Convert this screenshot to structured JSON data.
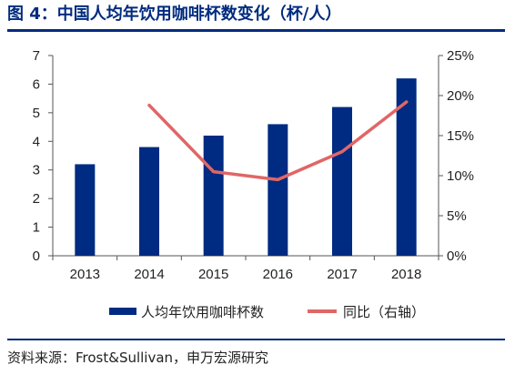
{
  "title": "图 4：中国人均年饮用咖啡杯数变化（杯/人）",
  "source": "资料来源：Frost&Sullivan，申万宏源研究",
  "colors": {
    "accent": "#002B7F",
    "bar": "#002B82",
    "line": "#E06666",
    "axis": "#555555"
  },
  "chart_data": {
    "type": "bar",
    "title": "图 4：中国人均年饮用咖啡杯数变化（杯/人）",
    "categories": [
      "2013",
      "2014",
      "2015",
      "2016",
      "2017",
      "2018"
    ],
    "series": [
      {
        "name": "人均年饮用咖啡杯数",
        "type": "bar",
        "axis": "left",
        "values": [
          3.2,
          3.8,
          4.2,
          4.6,
          5.2,
          6.2
        ]
      },
      {
        "name": "同比（右轴）",
        "type": "line",
        "axis": "right",
        "values": [
          null,
          0.188,
          0.105,
          0.095,
          0.13,
          0.192
        ]
      }
    ],
    "ylim_left": [
      0,
      7
    ],
    "yticks_left": [
      "0",
      "1",
      "2",
      "3",
      "4",
      "5",
      "6",
      "7"
    ],
    "ylim_right": [
      0,
      0.25
    ],
    "yticks_right": [
      "0%",
      "5%",
      "10%",
      "15%",
      "20%",
      "25%"
    ],
    "grid": false,
    "legend": "bottom"
  }
}
